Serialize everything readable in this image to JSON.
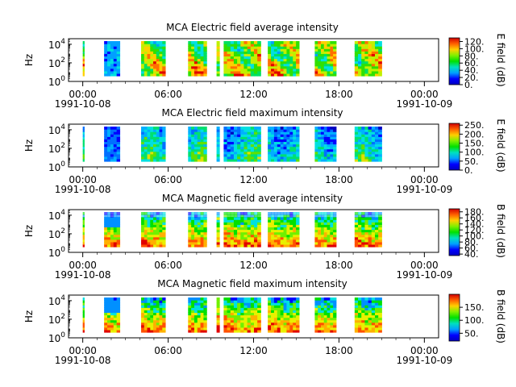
{
  "chart_data": [
    {
      "type": "heatmap",
      "title": "MCA  Electric field average intensity",
      "ylabel": "Hz",
      "colorbar_label": "E field (dB)",
      "colorbar_ticks": [
        "0.",
        "20.",
        "40.",
        "60.",
        "80.",
        "100.",
        "120."
      ],
      "colorbar_range": [
        0,
        130
      ],
      "palette": "rainbow-dense",
      "high_freq_fade": false,
      "ylim_exp": [
        0,
        4.6
      ],
      "y_ticks": [
        {
          "base": "10",
          "exp": "0",
          "value": 0
        },
        {
          "base": "10",
          "exp": "2",
          "value": 2
        },
        {
          "base": "10",
          "exp": "4",
          "value": 4
        }
      ],
      "x_ticks": [
        {
          "label": "00:00",
          "hour": 0
        },
        {
          "label": "06:00",
          "hour": 6
        },
        {
          "label": "12:00",
          "hour": 12
        },
        {
          "label": "18:00",
          "hour": 18
        },
        {
          "label": "00:00",
          "hour": 24
        }
      ],
      "date_start": "1991-10-08",
      "date_end": "1991-10-09",
      "data_segments_hours": [
        [
          0.0,
          0.1
        ],
        [
          1.5,
          2.6
        ],
        [
          4.1,
          5.8
        ],
        [
          7.4,
          8.7
        ],
        [
          9.4,
          9.6
        ],
        [
          9.9,
          12.5
        ],
        [
          13.0,
          15.2
        ],
        [
          16.3,
          17.8
        ],
        [
          19.1,
          21.0
        ]
      ],
      "low_freq_weak_span_hours": [
        1.5,
        2.6
      ]
    },
    {
      "type": "heatmap",
      "title": "MCA  Electric field maximum intensity",
      "ylabel": "Hz",
      "colorbar_label": "E field (dB)",
      "colorbar_ticks": [
        "0.",
        "50.",
        "100.",
        "150.",
        "200.",
        "250."
      ],
      "colorbar_range": [
        0,
        260
      ],
      "palette": "cool",
      "high_freq_fade": false,
      "ylim_exp": [
        0,
        4.6
      ],
      "y_ticks": [
        {
          "base": "10",
          "exp": "0",
          "value": 0
        },
        {
          "base": "10",
          "exp": "2",
          "value": 2
        },
        {
          "base": "10",
          "exp": "4",
          "value": 4
        }
      ],
      "x_ticks": [
        {
          "label": "00:00",
          "hour": 0
        },
        {
          "label": "06:00",
          "hour": 6
        },
        {
          "label": "12:00",
          "hour": 12
        },
        {
          "label": "18:00",
          "hour": 18
        },
        {
          "label": "00:00",
          "hour": 24
        }
      ],
      "date_start": "1991-10-08",
      "date_end": "1991-10-09",
      "data_segments_hours": [
        [
          0.0,
          0.1
        ],
        [
          1.5,
          2.6
        ],
        [
          4.1,
          5.8
        ],
        [
          7.4,
          8.7
        ],
        [
          9.4,
          9.6
        ],
        [
          9.9,
          12.5
        ],
        [
          13.0,
          15.2
        ],
        [
          16.3,
          17.8
        ],
        [
          19.1,
          21.0
        ]
      ],
      "low_freq_weak_span_hours": [
        1.5,
        2.6
      ]
    },
    {
      "type": "heatmap",
      "title": "MCA  Magnetic field average intensity",
      "ylabel": "Hz",
      "colorbar_label": "B field (dB)",
      "colorbar_ticks": [
        "40.",
        "60.",
        "80.",
        "100.",
        "120.",
        "140.",
        "160.",
        "180."
      ],
      "colorbar_range": [
        35,
        190
      ],
      "palette": "warm",
      "high_freq_fade": true,
      "ylim_exp": [
        0,
        4.6
      ],
      "y_ticks": [
        {
          "base": "10",
          "exp": "0",
          "value": 0
        },
        {
          "base": "10",
          "exp": "2",
          "value": 2
        },
        {
          "base": "10",
          "exp": "4",
          "value": 4
        }
      ],
      "x_ticks": [
        {
          "label": "00:00",
          "hour": 0
        },
        {
          "label": "06:00",
          "hour": 6
        },
        {
          "label": "12:00",
          "hour": 12
        },
        {
          "label": "18:00",
          "hour": 18
        },
        {
          "label": "00:00",
          "hour": 24
        }
      ],
      "date_start": "1991-10-08",
      "date_end": "1991-10-09",
      "data_segments_hours": [
        [
          0.0,
          0.1
        ],
        [
          1.5,
          2.6
        ],
        [
          4.1,
          5.8
        ],
        [
          7.4,
          8.7
        ],
        [
          9.4,
          9.6
        ],
        [
          9.9,
          12.5
        ],
        [
          13.0,
          15.2
        ],
        [
          16.3,
          17.8
        ],
        [
          19.1,
          21.0
        ]
      ],
      "low_freq_weak_span_hours": [
        1.5,
        2.6
      ]
    },
    {
      "type": "heatmap",
      "title": "MCA  Magnetic field maximum intensity",
      "ylabel": "Hz",
      "colorbar_label": "B field (dB)",
      "colorbar_ticks": [
        "50.",
        "100.",
        "150."
      ],
      "colorbar_range": [
        20,
        200
      ],
      "palette": "warm",
      "high_freq_fade": false,
      "ylim_exp": [
        0,
        4.6
      ],
      "y_ticks": [
        {
          "base": "10",
          "exp": "0",
          "value": 0
        },
        {
          "base": "10",
          "exp": "2",
          "value": 2
        },
        {
          "base": "10",
          "exp": "4",
          "value": 4
        }
      ],
      "x_ticks": [
        {
          "label": "00:00",
          "hour": 0
        },
        {
          "label": "06:00",
          "hour": 6
        },
        {
          "label": "12:00",
          "hour": 12
        },
        {
          "label": "18:00",
          "hour": 18
        },
        {
          "label": "00:00",
          "hour": 24
        }
      ],
      "date_start": "1991-10-08",
      "date_end": "1991-10-09",
      "data_segments_hours": [
        [
          0.0,
          0.1
        ],
        [
          1.5,
          2.6
        ],
        [
          4.1,
          5.8
        ],
        [
          7.4,
          8.7
        ],
        [
          9.4,
          9.6
        ],
        [
          9.9,
          12.5
        ],
        [
          13.0,
          15.2
        ],
        [
          16.3,
          17.8
        ],
        [
          19.1,
          21.0
        ]
      ],
      "low_freq_weak_span_hours": [
        1.5,
        2.6
      ]
    }
  ]
}
